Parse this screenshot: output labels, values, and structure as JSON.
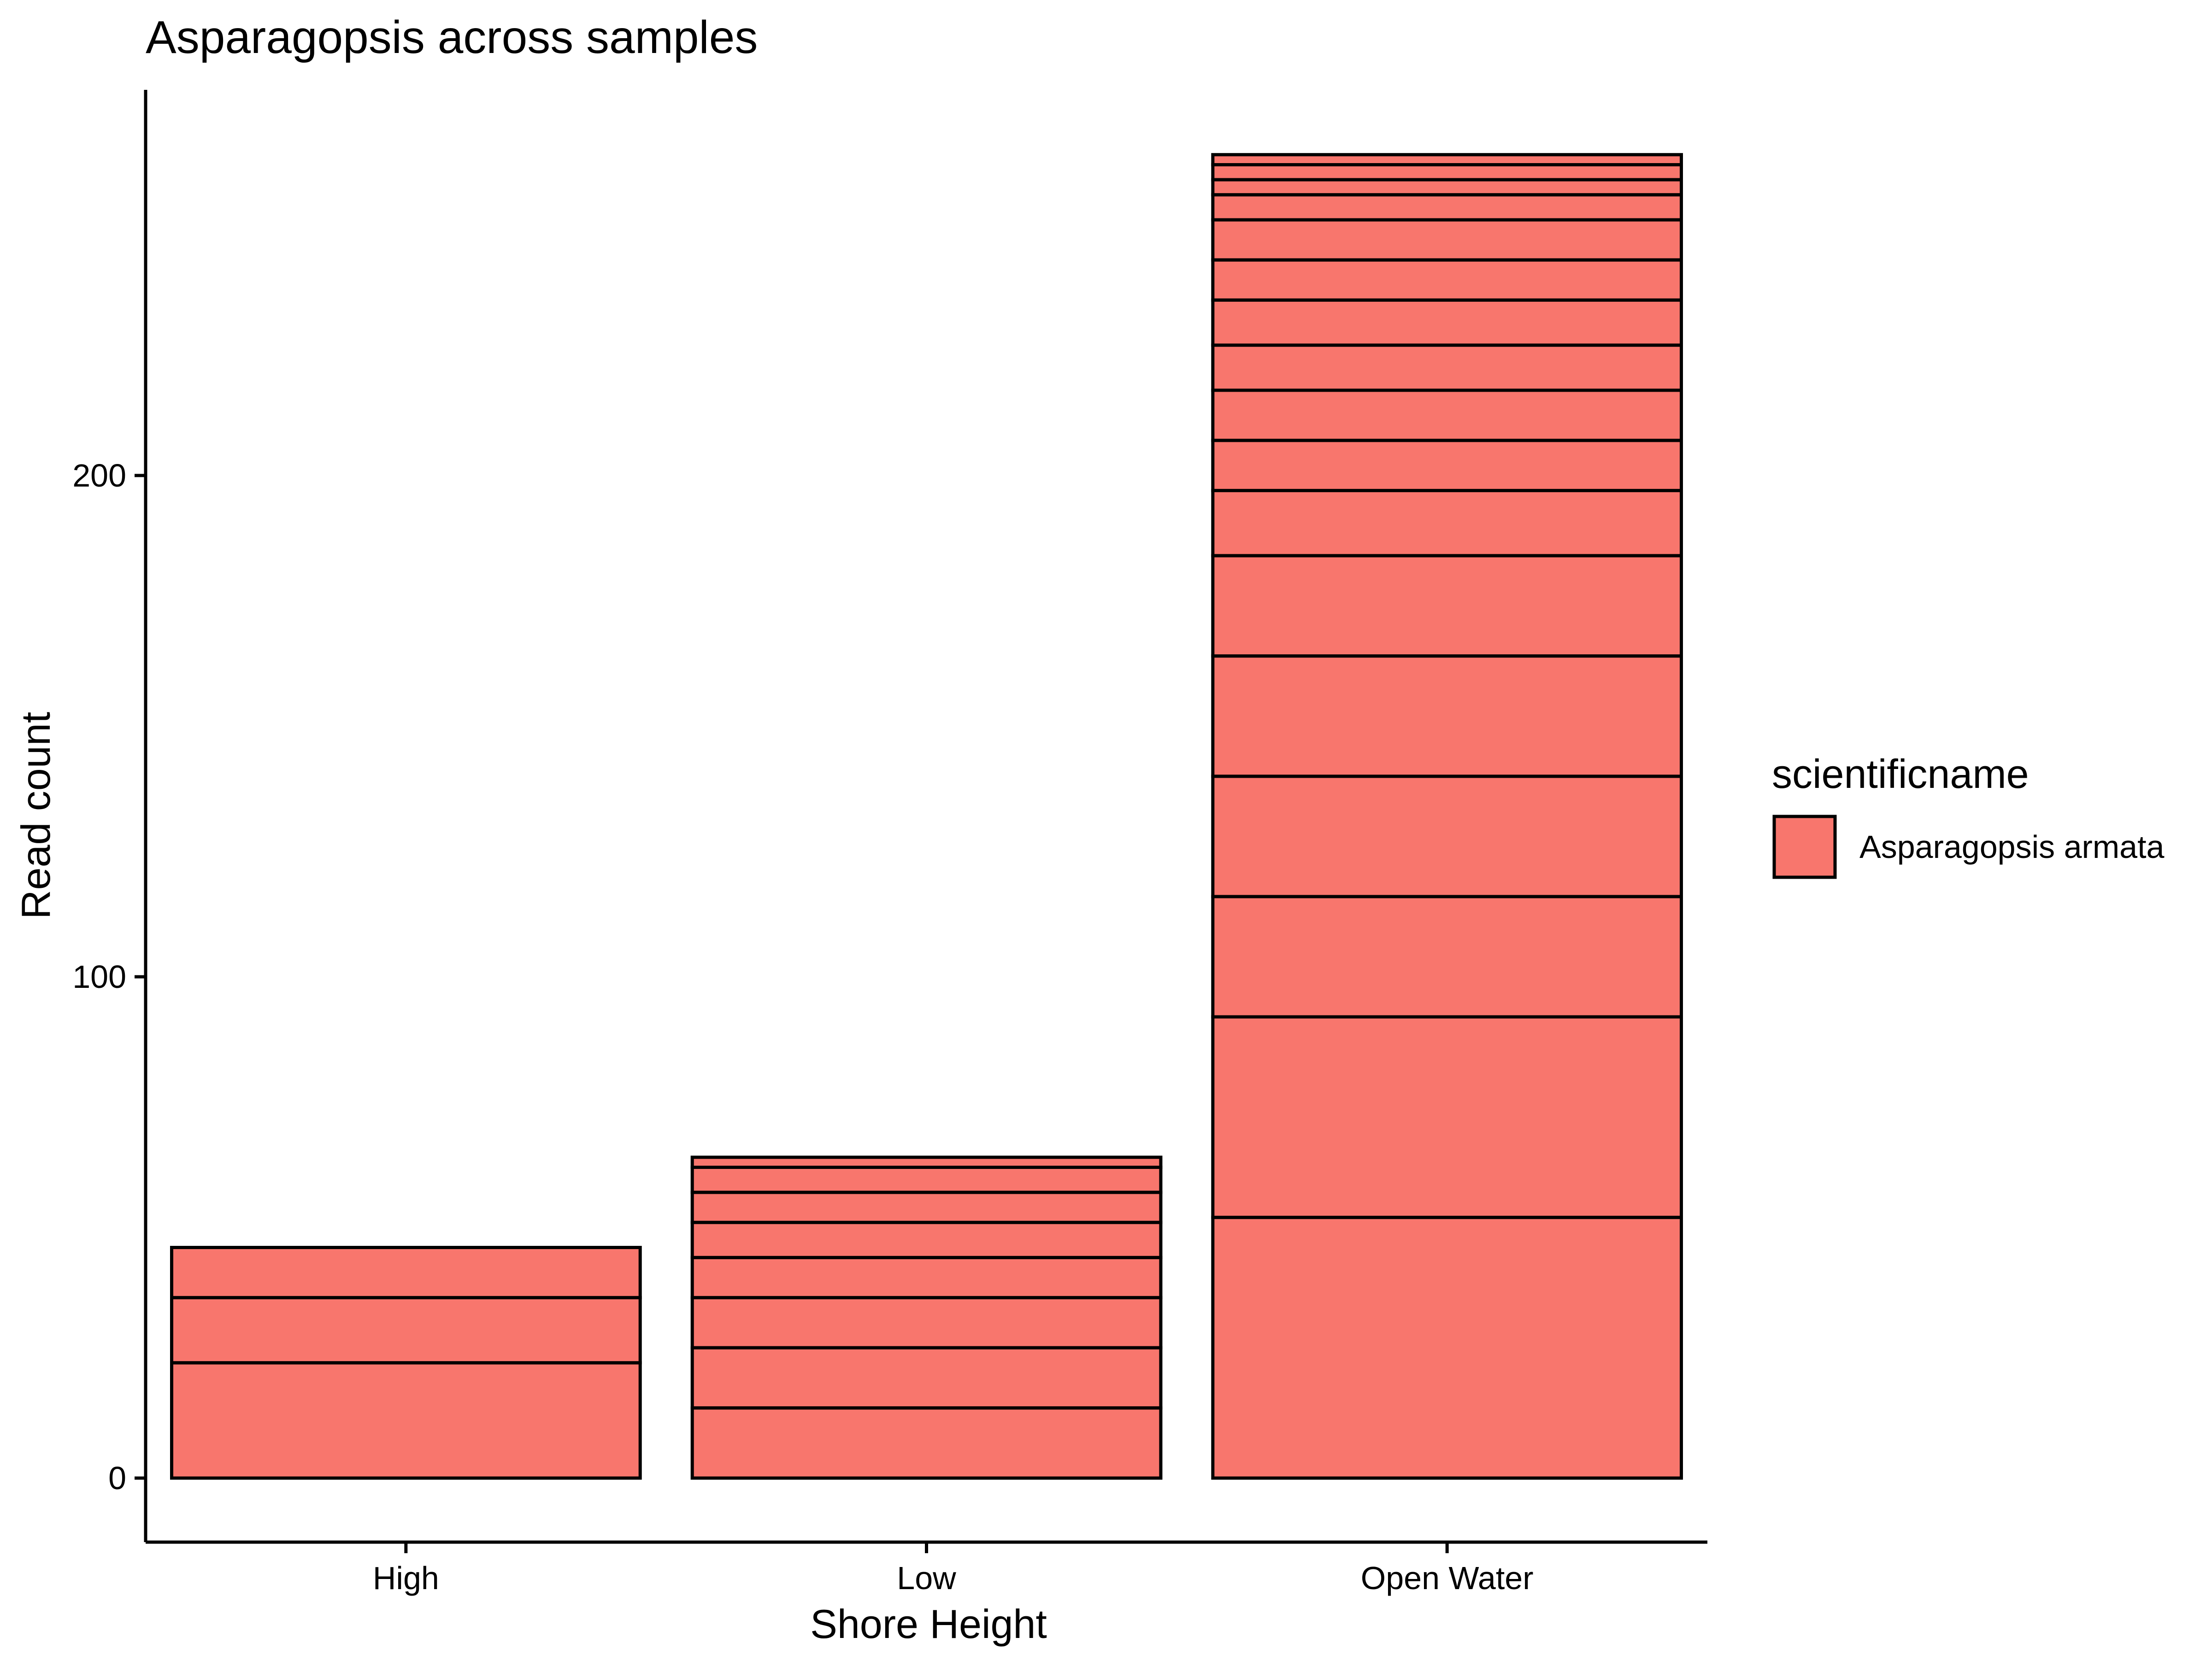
{
  "chart_data": {
    "type": "bar",
    "stacked": true,
    "title": "Asparagopsis across samples",
    "xlabel": "Shore Height",
    "ylabel": "Read count",
    "categories": [
      "High",
      "Low",
      "Open Water"
    ],
    "ylim": [
      -13,
      277
    ],
    "yticks": [
      0,
      100,
      200
    ],
    "ytick_labels": [
      "0",
      "100",
      "200"
    ],
    "grid": false,
    "legend": {
      "title": "scientificname",
      "position": "right",
      "entries": [
        {
          "label": "Asparagopsis armata",
          "color": "#F8766D"
        }
      ]
    },
    "fill_color": "#F8766D",
    "segment_outline_color": "#000000",
    "stacks": [
      {
        "category": "High",
        "segments": [
          23,
          13,
          10
        ],
        "total": 46
      },
      {
        "category": "Low",
        "segments": [
          14,
          12,
          10,
          8,
          7,
          6,
          5,
          2
        ],
        "total": 64
      },
      {
        "category": "Open Water",
        "segments": [
          52,
          40,
          24,
          24,
          24,
          20,
          13,
          10,
          10,
          9,
          9,
          8,
          8,
          5,
          3,
          3,
          2
        ],
        "total": 264
      }
    ]
  }
}
